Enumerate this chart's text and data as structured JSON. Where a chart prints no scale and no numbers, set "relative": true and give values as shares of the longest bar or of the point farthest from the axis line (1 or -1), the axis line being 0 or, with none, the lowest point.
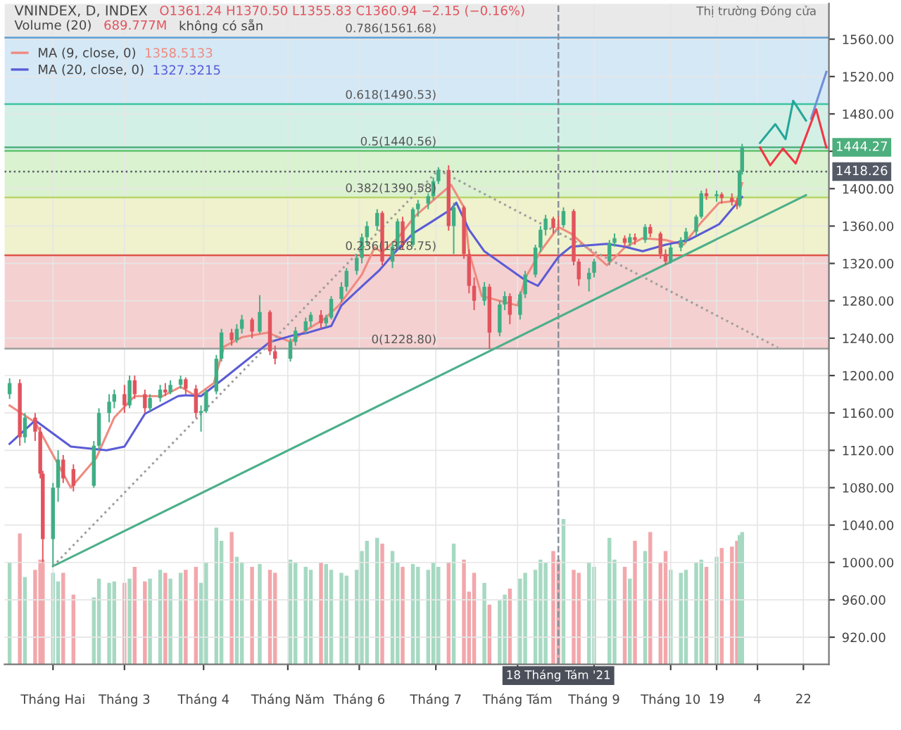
{
  "chart_data": [
    {
      "type": "candlestick",
      "x": [
        "2021-01-15",
        "2021-01-19",
        "2021-01-21",
        "2021-01-25",
        "2021-01-27",
        "2021-01-28",
        "2021-02-01",
        "2021-02-03",
        "2021-02-05",
        "2021-02-09",
        "2021-02-17",
        "2021-02-19",
        "2021-02-23",
        "2021-02-25",
        "2021-03-01",
        "2021-03-03",
        "2021-03-05",
        "2021-03-09",
        "2021-03-11",
        "2021-03-15",
        "2021-03-17",
        "2021-03-19",
        "2021-03-23",
        "2021-03-25",
        "2021-03-29",
        "2021-03-31",
        "2021-04-02",
        "2021-04-06",
        "2021-04-08",
        "2021-04-12",
        "2021-04-14",
        "2021-04-16",
        "2021-04-20",
        "2021-04-23",
        "2021-04-27",
        "2021-04-29",
        "2021-05-05",
        "2021-05-07",
        "2021-05-11",
        "2021-05-13",
        "2021-05-17",
        "2021-05-19",
        "2021-05-21",
        "2021-05-25",
        "2021-05-27",
        "2021-05-31",
        "2021-06-02",
        "2021-06-04",
        "2021-06-08",
        "2021-06-10",
        "2021-06-14",
        "2021-06-16",
        "2021-06-18",
        "2021-06-22",
        "2021-06-24",
        "2021-06-28",
        "2021-06-30",
        "2021-07-02",
        "2021-07-06",
        "2021-07-08",
        "2021-07-12",
        "2021-07-14",
        "2021-07-16",
        "2021-07-20",
        "2021-07-22",
        "2021-07-26",
        "2021-07-28",
        "2021-07-30",
        "2021-08-03",
        "2021-08-05",
        "2021-08-09",
        "2021-08-11",
        "2021-08-13",
        "2021-08-16",
        "2021-08-18",
        "2021-08-20",
        "2021-08-24",
        "2021-08-26",
        "2021-08-30",
        "2021-09-01",
        "2021-09-07",
        "2021-09-09",
        "2021-09-13",
        "2021-09-15",
        "2021-09-17",
        "2021-09-21",
        "2021-09-23",
        "2021-09-27",
        "2021-09-29",
        "2021-10-01",
        "2021-10-05",
        "2021-10-07",
        "2021-10-11",
        "2021-10-13",
        "2021-10-15",
        "2021-10-19",
        "2021-10-21",
        "2021-10-25",
        "2021-10-27",
        "2021-10-28",
        "2021-10-29"
      ],
      "ohlc": [
        [
          1180,
          1197,
          1175,
          1192
        ],
        [
          1192,
          1196,
          1125,
          1134
        ],
        [
          1134,
          1160,
          1128,
          1155
        ],
        [
          1155,
          1160,
          1130,
          1140
        ],
        [
          1140,
          1145,
          1090,
          1095
        ],
        [
          1095,
          1098,
          1000,
          1025
        ],
        [
          1025,
          1085,
          996,
          1080
        ],
        [
          1080,
          1120,
          1065,
          1110
        ],
        [
          1110,
          1115,
          1085,
          1090
        ],
        [
          1100,
          1105,
          1076,
          1082
        ],
        [
          1082,
          1130,
          1080,
          1125
        ],
        [
          1125,
          1165,
          1120,
          1160
        ],
        [
          1160,
          1180,
          1150,
          1172
        ],
        [
          1172,
          1185,
          1165,
          1180
        ],
        [
          1180,
          1190,
          1160,
          1168
        ],
        [
          1168,
          1200,
          1165,
          1195
        ],
        [
          1195,
          1200,
          1175,
          1180
        ],
        [
          1180,
          1185,
          1160,
          1165
        ],
        [
          1165,
          1180,
          1162,
          1176
        ],
        [
          1176,
          1190,
          1172,
          1185
        ],
        [
          1185,
          1192,
          1178,
          1182
        ],
        [
          1182,
          1195,
          1180,
          1190
        ],
        [
          1190,
          1200,
          1186,
          1196
        ],
        [
          1196,
          1198,
          1180,
          1186
        ],
        [
          1186,
          1190,
          1155,
          1160
        ],
        [
          1160,
          1168,
          1140,
          1162
        ],
        [
          1162,
          1185,
          1160,
          1183
        ],
        [
          1183,
          1222,
          1180,
          1218
        ],
        [
          1218,
          1250,
          1215,
          1246
        ],
        [
          1246,
          1250,
          1232,
          1238
        ],
        [
          1238,
          1255,
          1235,
          1250
        ],
        [
          1250,
          1265,
          1245,
          1260
        ],
        [
          1260,
          1262,
          1240,
          1247
        ],
        [
          1247,
          1286,
          1245,
          1268
        ],
        [
          1268,
          1270,
          1222,
          1226
        ],
        [
          1226,
          1232,
          1212,
          1218
        ],
        [
          1218,
          1240,
          1215,
          1236
        ],
        [
          1236,
          1252,
          1232,
          1248
        ],
        [
          1248,
          1262,
          1244,
          1258
        ],
        [
          1258,
          1268,
          1252,
          1265
        ],
        [
          1265,
          1270,
          1250,
          1256
        ],
        [
          1256,
          1265,
          1252,
          1262
        ],
        [
          1262,
          1285,
          1260,
          1282
        ],
        [
          1282,
          1300,
          1278,
          1295
        ],
        [
          1295,
          1315,
          1290,
          1312
        ],
        [
          1312,
          1330,
          1308,
          1326
        ],
        [
          1326,
          1352,
          1320,
          1348
        ],
        [
          1348,
          1365,
          1340,
          1360
        ],
        [
          1360,
          1378,
          1355,
          1374
        ],
        [
          1374,
          1376,
          1318,
          1322
        ],
        [
          1322,
          1342,
          1315,
          1338
        ],
        [
          1338,
          1368,
          1335,
          1365
        ],
        [
          1365,
          1370,
          1335,
          1340
        ],
        [
          1340,
          1380,
          1338,
          1378
        ],
        [
          1378,
          1388,
          1370,
          1384
        ],
        [
          1384,
          1395,
          1378,
          1392
        ],
        [
          1392,
          1412,
          1388,
          1408
        ],
        [
          1408,
          1423,
          1405,
          1420
        ],
        [
          1420,
          1425,
          1355,
          1360
        ],
        [
          1360,
          1385,
          1330,
          1380
        ],
        [
          1380,
          1382,
          1325,
          1330
        ],
        [
          1330,
          1335,
          1288,
          1296
        ],
        [
          1296,
          1305,
          1270,
          1280
        ],
        [
          1280,
          1300,
          1275,
          1295
        ],
        [
          1295,
          1298,
          1228.8,
          1246
        ],
        [
          1246,
          1280,
          1242,
          1276
        ],
        [
          1276,
          1290,
          1270,
          1285
        ],
        [
          1285,
          1288,
          1255,
          1265
        ],
        [
          1265,
          1290,
          1260,
          1287
        ],
        [
          1287,
          1312,
          1283,
          1308
        ],
        [
          1308,
          1340,
          1305,
          1337
        ],
        [
          1337,
          1360,
          1332,
          1356
        ],
        [
          1356,
          1372,
          1350,
          1368
        ],
        [
          1368,
          1370,
          1352,
          1358
        ],
        [
          1361.24,
          1370.5,
          1355.83,
          1360.94
        ],
        [
          1361,
          1380,
          1358,
          1376
        ],
        [
          1376,
          1378,
          1318,
          1322
        ],
        [
          1322,
          1325,
          1296,
          1303
        ],
        [
          1303,
          1315,
          1290,
          1310
        ],
        [
          1310,
          1325,
          1305,
          1322
        ],
        [
          1322,
          1345,
          1318,
          1342
        ],
        [
          1342,
          1352,
          1338,
          1347
        ],
        [
          1347,
          1350,
          1338,
          1342
        ],
        [
          1342,
          1352,
          1338,
          1348
        ],
        [
          1348,
          1352,
          1340,
          1345
        ],
        [
          1345,
          1362,
          1342,
          1359
        ],
        [
          1359,
          1362,
          1348,
          1352
        ],
        [
          1352,
          1354,
          1325,
          1330
        ],
        [
          1330,
          1335,
          1318,
          1322
        ],
        [
          1322,
          1340,
          1320,
          1337
        ],
        [
          1337,
          1348,
          1333,
          1345
        ],
        [
          1345,
          1358,
          1342,
          1354
        ],
        [
          1354,
          1372,
          1350,
          1370
        ],
        [
          1370,
          1398,
          1368,
          1395
        ],
        [
          1395,
          1400,
          1388,
          1392
        ],
        [
          1392,
          1398,
          1386,
          1394
        ],
        [
          1394,
          1396,
          1384,
          1390
        ],
        [
          1390,
          1395,
          1382,
          1386
        ],
        [
          1386,
          1390,
          1378,
          1382
        ],
        [
          1382,
          1420,
          1380,
          1418.26
        ],
        [
          1418.26,
          1448,
          1415,
          1444.27
        ]
      ],
      "colors": [
        "#3fae84",
        "#e2535d",
        "#3fae84",
        "#e2535d",
        "#e2535d",
        "#e2535d",
        "#3fae84",
        "#3fae84",
        "#e2535d",
        "#e2535d",
        "#3fae84",
        "#3fae84",
        "#3fae84",
        "#3fae84",
        "#e2535d",
        "#3fae84",
        "#e2535d",
        "#e2535d",
        "#3fae84",
        "#3fae84",
        "#e2535d",
        "#3fae84",
        "#3fae84",
        "#e2535d",
        "#e2535d",
        "#3fae84",
        "#3fae84",
        "#3fae84",
        "#3fae84",
        "#e2535d",
        "#3fae84",
        "#3fae84",
        "#e2535d",
        "#3fae84",
        "#e2535d",
        "#e2535d",
        "#3fae84",
        "#3fae84",
        "#3fae84",
        "#3fae84",
        "#e2535d",
        "#3fae84",
        "#3fae84",
        "#3fae84",
        "#3fae84",
        "#3fae84",
        "#3fae84",
        "#3fae84",
        "#3fae84",
        "#e2535d",
        "#3fae84",
        "#3fae84",
        "#e2535d",
        "#3fae84",
        "#3fae84",
        "#3fae84",
        "#3fae84",
        "#3fae84",
        "#e2535d",
        "#3fae84",
        "#e2535d",
        "#e2535d",
        "#e2535d",
        "#3fae84",
        "#e2535d",
        "#3fae84",
        "#3fae84",
        "#e2535d",
        "#3fae84",
        "#3fae84",
        "#3fae84",
        "#3fae84",
        "#3fae84",
        "#e2535d",
        "#e2535d",
        "#3fae84",
        "#e2535d",
        "#e2535d",
        "#3fae84",
        "#3fae84",
        "#3fae84",
        "#3fae84",
        "#e2535d",
        "#3fae84",
        "#e2535d",
        "#3fae84",
        "#e2535d",
        "#e2535d",
        "#e2535d",
        "#3fae84",
        "#3fae84",
        "#3fae84",
        "#3fae84",
        "#3fae84",
        "#e2535d",
        "#3fae84",
        "#e2535d",
        "#e2535d",
        "#e2535d",
        "#3fae84",
        "#3fae84"
      ],
      "series": [
        {
          "type": "line",
          "name": "MA (9, close, 0)",
          "color": "#ef8a7f",
          "x": [
            "2021-01-15",
            "2021-01-25",
            "2021-02-08",
            "2021-02-18",
            "2021-02-25",
            "2021-03-05",
            "2021-03-16",
            "2021-03-23",
            "2021-03-29",
            "2021-04-05",
            "2021-04-09",
            "2021-04-16",
            "2021-04-26",
            "2021-05-05",
            "2021-05-12",
            "2021-05-18",
            "2021-05-24",
            "2021-06-02",
            "2021-06-07",
            "2021-06-10",
            "2021-06-16",
            "2021-06-23",
            "2021-07-01",
            "2021-07-07",
            "2021-07-12",
            "2021-07-14",
            "2021-07-19",
            "2021-08-02",
            "2021-08-05",
            "2021-08-11",
            "2021-08-18",
            "2021-08-23",
            "2021-09-06",
            "2021-09-13",
            "2021-09-20",
            "2021-09-29",
            "2021-10-06",
            "2021-10-13",
            "2021-10-20",
            "2021-10-27",
            "2021-10-29"
          ],
          "values": [
            1168,
            1150,
            1080,
            1112,
            1155,
            1178,
            1178,
            1188,
            1178,
            1192,
            1231,
            1241,
            1246,
            1236,
            1250,
            1260,
            1275,
            1308,
            1337,
            1332,
            1347,
            1371,
            1390,
            1404,
            1380,
            1332,
            1285,
            1275,
            1304,
            1333,
            1359,
            1352,
            1318,
            1337,
            1347,
            1345,
            1340,
            1364,
            1385,
            1387,
            1406
          ]
        },
        {
          "type": "line",
          "name": "MA (20, close, 0)",
          "color": "#5b5bd6",
          "x": [
            "2021-01-15",
            "2021-01-25",
            "2021-02-08",
            "2021-02-22",
            "2021-03-01",
            "2021-03-09",
            "2021-03-22",
            "2021-03-25",
            "2021-03-31",
            "2021-04-09",
            "2021-04-20",
            "2021-04-27",
            "2021-05-06",
            "2021-05-12",
            "2021-05-17",
            "2021-05-21",
            "2021-05-25",
            "2021-06-03",
            "2021-06-09",
            "2021-06-15",
            "2021-06-22",
            "2021-06-29",
            "2021-07-07",
            "2021-07-09",
            "2021-07-14",
            "2021-07-20",
            "2021-08-04",
            "2021-08-10",
            "2021-08-18",
            "2021-08-23",
            "2021-09-06",
            "2021-09-13",
            "2021-09-20",
            "2021-09-29",
            "2021-10-08",
            "2021-10-20",
            "2021-10-29"
          ],
          "values": [
            1127,
            1152,
            1124,
            1120,
            1124,
            1159,
            1178,
            1179,
            1178,
            1197,
            1221,
            1236,
            1243,
            1246,
            1250,
            1253,
            1275,
            1298,
            1313,
            1332,
            1352,
            1364,
            1378,
            1385,
            1356,
            1333,
            1304,
            1296,
            1327,
            1338,
            1341,
            1338,
            1333,
            1340,
            1345,
            1362,
            1391
          ]
        },
        {
          "type": "line",
          "color": "#4caf8a",
          "x": [
            "2021-02-01",
            "2021-11-23"
          ],
          "values": [
            996,
            1393
          ]
        },
        {
          "type": "line",
          "color": "#9e9e9e",
          "line_style": "dotted",
          "x": [
            "2021-02-01",
            "2021-07-02"
          ],
          "values": [
            996,
            1420
          ]
        },
        {
          "type": "line",
          "color": "#9e9e9e",
          "line_style": "dotted",
          "x": [
            "2021-07-02",
            "2021-11-12"
          ],
          "values": [
            1420,
            1230
          ]
        },
        {
          "type": "line",
          "color": "#26a69a",
          "x": [
            "2021-11-05",
            "2021-11-11",
            "2021-11-15",
            "2021-11-18",
            "2021-11-23"
          ],
          "values": [
            1449,
            1469,
            1453,
            1494,
            1473
          ]
        },
        {
          "type": "line",
          "color": "#6f8fd6",
          "x": [
            "2021-11-25",
            "2021-12-01"
          ],
          "values": [
            1475,
            1525
          ]
        },
        {
          "type": "line",
          "color": "#f23645",
          "x": [
            "2021-11-05",
            "2021-11-09",
            "2021-11-14",
            "2021-11-19",
            "2021-11-27",
            "2021-12-01"
          ],
          "values": [
            1444,
            1425,
            1443,
            1427,
            1485,
            1444
          ]
        }
      ],
      "bands": [
        {
          "axis": "y",
          "from": 1228.8,
          "to": 1328.75,
          "color": "#f5d0d0"
        },
        {
          "axis": "y",
          "from": 1328.75,
          "to": 1390.58,
          "color": "#eff2cc"
        },
        {
          "axis": "y",
          "from": 1390.58,
          "to": 1440.56,
          "color": "#daf2cf"
        },
        {
          "axis": "y",
          "from": 1440.56,
          "to": 1490.53,
          "color": "#d3f0e6"
        },
        {
          "axis": "y",
          "from": 1490.53,
          "to": 1561.68,
          "color": "#d5e8f6"
        },
        {
          "axis": "y",
          "from": 1561.68,
          "to": 1598,
          "color": "#e9e9e9"
        }
      ],
      "ref_lines": [
        {
          "axis": "y",
          "value": 1228.8,
          "color": "#a0a0a0"
        },
        {
          "axis": "y",
          "value": 1328.75,
          "color": "#e0534d"
        },
        {
          "axis": "y",
          "value": 1390.58,
          "color": "#b9d66b"
        },
        {
          "axis": "y",
          "value": 1440.56,
          "color": "#5cc46a"
        },
        {
          "axis": "y",
          "value": 1490.53,
          "color": "#3cc4a0"
        },
        {
          "axis": "y",
          "value": 1561.68,
          "color": "#5a9fd4"
        },
        {
          "axis": "y",
          "value": 1444.27,
          "label": "1444.27",
          "color": "#4caf7d"
        },
        {
          "axis": "y",
          "value": 1418.26,
          "label": "1418.26",
          "color": "#555b66",
          "line_style": "dotted"
        },
        {
          "axis": "x",
          "value": "2021-08-18",
          "label": "18 Tháng Tám '21",
          "color": "#8a8f99",
          "line_style": "dashed"
        }
      ],
      "annotations": [
        "VNINDEX, D, INDEX",
        "O1361.24 H1370.50 L1355.83 C1360.94 −2.15 (−0.16%)",
        "Volume (20)",
        "689.777M",
        "không có sẵn",
        "1358.5133",
        "1327.3215",
        "Thị trường Đóng cửa",
        {
          "text": "0(1228.80)",
          "x": "2021-07-02",
          "y": 1228.8
        },
        {
          "text": "0.236(1328.75)",
          "x": "2021-07-02",
          "y": 1328.75
        },
        {
          "text": "0.382(1390.58)",
          "x": "2021-07-02",
          "y": 1390.58
        },
        {
          "text": "0.5(1440.56)",
          "x": "2021-07-02",
          "y": 1440.56
        },
        {
          "text": "0.618(1490.53)",
          "x": "2021-07-02",
          "y": 1490.53
        },
        {
          "text": "0.786(1561.68)",
          "x": "2021-07-02",
          "y": 1561.68
        }
      ],
      "xlim": [
        "2021-01-13",
        "2021-12-02"
      ],
      "xticks": [
        {
          "value": "2021-02-01",
          "label": "Tháng Hai"
        },
        {
          "value": "2021-03-01",
          "label": "Tháng 3"
        },
        {
          "value": "2021-04-01",
          "label": "Tháng 4"
        },
        {
          "value": "2021-05-04",
          "label": "Tháng Năm"
        },
        {
          "value": "2021-06-01",
          "label": "Tháng 6"
        },
        {
          "value": "2021-07-01",
          "label": "Tháng 7"
        },
        {
          "value": "2021-08-02",
          "label": "Tháng Tám"
        },
        {
          "value": "2021-09-01",
          "label": "Tháng 9"
        },
        {
          "value": "2021-10-01",
          "label": "Tháng 10"
        },
        {
          "value": "2021-10-19",
          "label": "19"
        },
        {
          "value": "2021-11-04",
          "label": "4"
        },
        {
          "value": "2021-11-22",
          "label": "22"
        }
      ],
      "ylim": [
        891,
        1598
      ],
      "yticks": [
        {
          "value": 920,
          "label": "920.00"
        },
        {
          "value": 960,
          "label": "960.00"
        },
        {
          "value": 1000,
          "label": "1000.00"
        },
        {
          "value": 1040,
          "label": "1040.00"
        },
        {
          "value": 1080,
          "label": "1080.00"
        },
        {
          "value": 1120,
          "label": "1120.00"
        },
        {
          "value": 1160,
          "label": "1160.00"
        },
        {
          "value": 1200,
          "label": "1200.00"
        },
        {
          "value": 1240,
          "label": "1240.00"
        },
        {
          "value": 1280,
          "label": "1280.00"
        },
        {
          "value": 1320,
          "label": "1320.00"
        },
        {
          "value": 1360,
          "label": "1360.00"
        },
        {
          "value": 1400,
          "label": "1400.00"
        },
        {
          "value": 1440,
          "label": null
        },
        {
          "value": 1480,
          "label": "1480.00"
        },
        {
          "value": 1520,
          "label": "1520.00"
        },
        {
          "value": 1560,
          "label": "1560.00"
        }
      ],
      "grid": true,
      "legend": "top left"
    },
    {
      "type": "bar",
      "relative": true,
      "tick_labels": false,
      "x": [
        "2021-01-15",
        "2021-01-19",
        "2021-01-21",
        "2021-01-25",
        "2021-01-27",
        "2021-01-28",
        "2021-02-01",
        "2021-02-03",
        "2021-02-05",
        "2021-02-09",
        "2021-02-17",
        "2021-02-19",
        "2021-02-23",
        "2021-02-25",
        "2021-03-01",
        "2021-03-03",
        "2021-03-05",
        "2021-03-09",
        "2021-03-11",
        "2021-03-15",
        "2021-03-17",
        "2021-03-19",
        "2021-03-23",
        "2021-03-25",
        "2021-03-29",
        "2021-03-31",
        "2021-04-02",
        "2021-04-06",
        "2021-04-08",
        "2021-04-12",
        "2021-04-14",
        "2021-04-16",
        "2021-04-20",
        "2021-04-23",
        "2021-04-27",
        "2021-04-29",
        "2021-05-05",
        "2021-05-07",
        "2021-05-11",
        "2021-05-13",
        "2021-05-17",
        "2021-05-19",
        "2021-05-21",
        "2021-05-25",
        "2021-05-27",
        "2021-05-31",
        "2021-06-02",
        "2021-06-04",
        "2021-06-08",
        "2021-06-10",
        "2021-06-14",
        "2021-06-16",
        "2021-06-18",
        "2021-06-22",
        "2021-06-24",
        "2021-06-28",
        "2021-06-30",
        "2021-07-02",
        "2021-07-06",
        "2021-07-08",
        "2021-07-12",
        "2021-07-14",
        "2021-07-16",
        "2021-07-20",
        "2021-07-22",
        "2021-07-26",
        "2021-07-28",
        "2021-07-30",
        "2021-08-03",
        "2021-08-05",
        "2021-08-09",
        "2021-08-11",
        "2021-08-13",
        "2021-08-16",
        "2021-08-18",
        "2021-08-20",
        "2021-08-24",
        "2021-08-26",
        "2021-08-30",
        "2021-09-01",
        "2021-09-07",
        "2021-09-09",
        "2021-09-13",
        "2021-09-15",
        "2021-09-17",
        "2021-09-21",
        "2021-09-23",
        "2021-09-27",
        "2021-09-29",
        "2021-10-01",
        "2021-10-05",
        "2021-10-07",
        "2021-10-11",
        "2021-10-13",
        "2021-10-15",
        "2021-10-19",
        "2021-10-21",
        "2021-10-25",
        "2021-10-27",
        "2021-10-28",
        "2021-10-29"
      ],
      "values": [
        0.7,
        0.9,
        0.6,
        0.65,
        0.72,
        0.72,
        0.63,
        0.57,
        0.63,
        0.48,
        0.46,
        0.59,
        0.56,
        0.57,
        0.56,
        0.59,
        0.67,
        0.57,
        0.59,
        0.65,
        0.63,
        0.59,
        0.63,
        0.65,
        0.67,
        0.56,
        0.7,
        0.94,
        0.85,
        0.91,
        0.74,
        0.7,
        0.67,
        0.69,
        0.65,
        0.63,
        0.72,
        0.7,
        0.67,
        0.65,
        0.7,
        0.69,
        0.65,
        0.63,
        0.61,
        0.65,
        0.78,
        0.85,
        0.87,
        0.83,
        0.78,
        0.7,
        0.67,
        0.69,
        0.67,
        0.65,
        0.7,
        0.67,
        0.7,
        0.83,
        0.72,
        0.5,
        0.63,
        0.56,
        0.41,
        0.44,
        0.48,
        0.52,
        0.59,
        0.63,
        0.65,
        0.72,
        0.7,
        0.78,
        0.72,
        1.0,
        0.65,
        0.63,
        0.7,
        0.67,
        0.87,
        0.72,
        0.67,
        0.59,
        0.85,
        0.78,
        0.91,
        0.7,
        0.78,
        0.65,
        0.63,
        0.65,
        0.7,
        0.72,
        0.67,
        0.74,
        0.8,
        0.81,
        0.85,
        0.89,
        0.91
      ],
      "colors": [
        "#a6d9c2",
        "#f2a7ab",
        "#a6d9c2",
        "#f2a7ab",
        "#f2a7ab",
        "#f2a7ab",
        "#a6d9c2",
        "#a6d9c2",
        "#f2a7ab",
        "#f2a7ab",
        "#a6d9c2",
        "#a6d9c2",
        "#a6d9c2",
        "#a6d9c2",
        "#f2a7ab",
        "#a6d9c2",
        "#f2a7ab",
        "#f2a7ab",
        "#a6d9c2",
        "#a6d9c2",
        "#f2a7ab",
        "#a6d9c2",
        "#a6d9c2",
        "#f2a7ab",
        "#f2a7ab",
        "#a6d9c2",
        "#a6d9c2",
        "#a6d9c2",
        "#a6d9c2",
        "#f2a7ab",
        "#a6d9c2",
        "#a6d9c2",
        "#f2a7ab",
        "#a6d9c2",
        "#f2a7ab",
        "#f2a7ab",
        "#a6d9c2",
        "#a6d9c2",
        "#a6d9c2",
        "#a6d9c2",
        "#f2a7ab",
        "#a6d9c2",
        "#a6d9c2",
        "#a6d9c2",
        "#a6d9c2",
        "#a6d9c2",
        "#a6d9c2",
        "#a6d9c2",
        "#a6d9c2",
        "#f2a7ab",
        "#a6d9c2",
        "#a6d9c2",
        "#f2a7ab",
        "#a6d9c2",
        "#a6d9c2",
        "#a6d9c2",
        "#a6d9c2",
        "#a6d9c2",
        "#f2a7ab",
        "#a6d9c2",
        "#f2a7ab",
        "#f2a7ab",
        "#f2a7ab",
        "#a6d9c2",
        "#f2a7ab",
        "#a6d9c2",
        "#a6d9c2",
        "#f2a7ab",
        "#a6d9c2",
        "#a6d9c2",
        "#a6d9c2",
        "#a6d9c2",
        "#a6d9c2",
        "#f2a7ab",
        "#f2a7ab",
        "#a6d9c2",
        "#f2a7ab",
        "#f2a7ab",
        "#a6d9c2",
        "#a6d9c2",
        "#a6d9c2",
        "#a6d9c2",
        "#f2a7ab",
        "#a6d9c2",
        "#f2a7ab",
        "#a6d9c2",
        "#f2a7ab",
        "#f2a7ab",
        "#f2a7ab",
        "#a6d9c2",
        "#a6d9c2",
        "#a6d9c2",
        "#a6d9c2",
        "#a6d9c2",
        "#f2a7ab",
        "#a6d9c2",
        "#f2a7ab",
        "#f2a7ab",
        "#f2a7ab",
        "#a6d9c2",
        "#a6d9c2"
      ],
      "xlim": [
        "2021-01-13",
        "2021-12-02"
      ]
    }
  ]
}
